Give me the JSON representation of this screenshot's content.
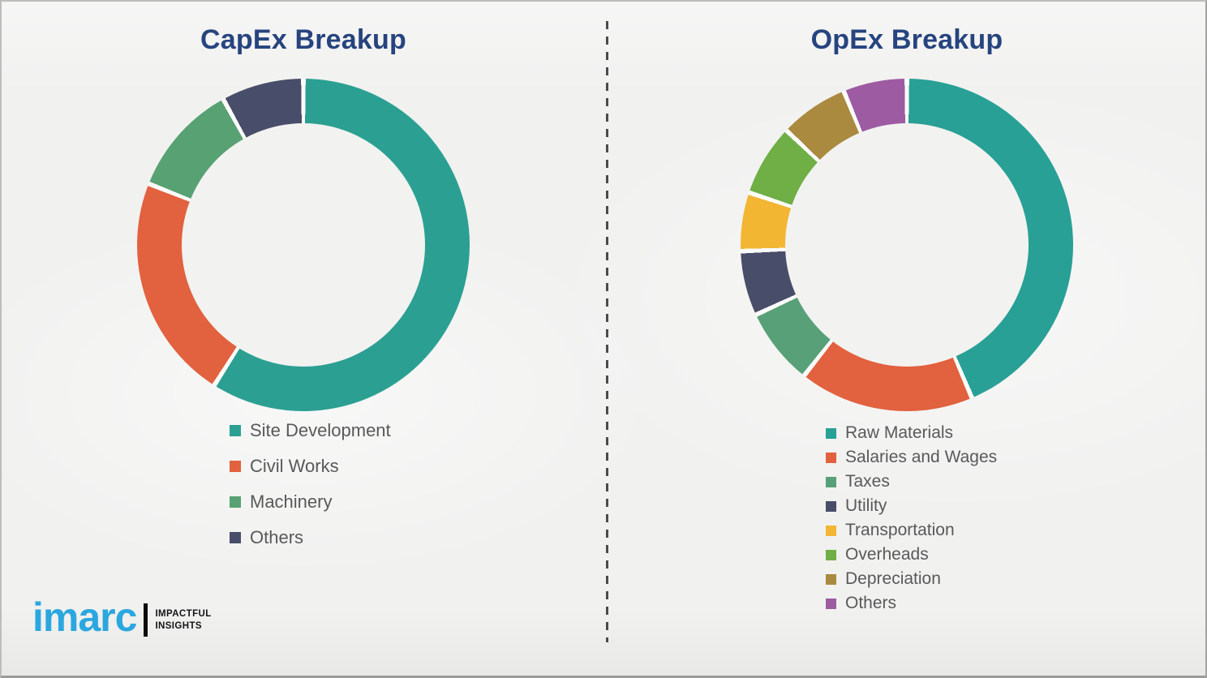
{
  "chart_data": [
    {
      "type": "pie",
      "subtype": "donut",
      "title": "CapEx Breakup",
      "categories": [
        "Site Development",
        "Civil Works",
        "Machinery",
        "Others"
      ],
      "values": [
        59,
        22,
        11,
        8
      ],
      "value_unit": "percent-estimated-from-arc-angles",
      "colors": [
        "#2BA092",
        "#E2613E",
        "#58A173",
        "#484D69"
      ],
      "start_angle_deg": 0,
      "direction": "clockwise",
      "legend_position": "below-chart-left",
      "data_labels_shown": false
    },
    {
      "type": "pie",
      "subtype": "donut",
      "title": "OpEx Breakup",
      "categories": [
        "Raw Materials",
        "Salaries and Wages",
        "Taxes",
        "Utility",
        "Transportation",
        "Overheads",
        "Depreciation",
        "Others"
      ],
      "values": [
        43.6,
        17.0,
        7.5,
        6.3,
        5.7,
        7.0,
        6.7,
        6.2
      ],
      "value_unit": "percent-estimated-from-arc-angles",
      "colors": [
        "#28A096",
        "#E2613E",
        "#58A077",
        "#484D69",
        "#F2B633",
        "#6FAF45",
        "#A98A3F",
        "#9D5BA2"
      ],
      "start_angle_deg": 0,
      "direction": "clockwise",
      "legend_position": "below-chart-left",
      "data_labels_shown": false
    }
  ],
  "logo": {
    "brand": "imarc",
    "tagline": [
      "IMPACTFUL",
      "INSIGHTS"
    ],
    "brand_color": "#2AA7DF"
  },
  "style": {
    "title_color": "#26447F",
    "legend_text_color": "#595959",
    "divider_color": "#4B4B4B",
    "segment_gap_color": "#FBFBFA"
  }
}
